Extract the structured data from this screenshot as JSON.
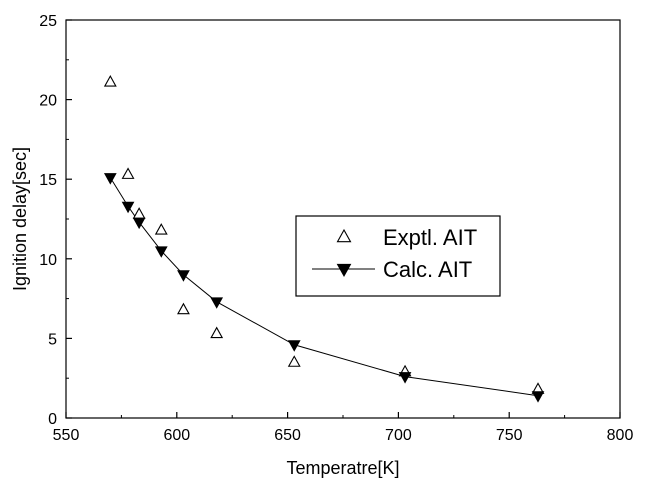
{
  "chart_data": {
    "type": "scatter",
    "xlabel": "Temperatre[K]",
    "ylabel": "Ignition delay[sec]",
    "xlim": [
      550,
      800
    ],
    "ylim": [
      0,
      25
    ],
    "xticks": [
      550,
      600,
      650,
      700,
      750,
      800
    ],
    "yticks": [
      0,
      5,
      10,
      15,
      20,
      25
    ],
    "grid": false,
    "legend_position": "center-right",
    "series": [
      {
        "name": "Exptl. AIT",
        "marker": "open-triangle-up",
        "line": false,
        "color": "#000000",
        "x": [
          570,
          578,
          583,
          593,
          603,
          618,
          653,
          703,
          763
        ],
        "y": [
          21.1,
          15.3,
          12.8,
          11.8,
          6.8,
          5.3,
          3.5,
          2.9,
          1.8
        ]
      },
      {
        "name": "Calc. AIT",
        "marker": "filled-triangle-down",
        "line": true,
        "color": "#000000",
        "x": [
          570,
          578,
          583,
          593,
          603,
          618,
          653,
          703,
          763
        ],
        "y": [
          15.1,
          13.3,
          12.3,
          10.5,
          9.0,
          7.3,
          4.6,
          2.6,
          1.4
        ]
      }
    ]
  }
}
